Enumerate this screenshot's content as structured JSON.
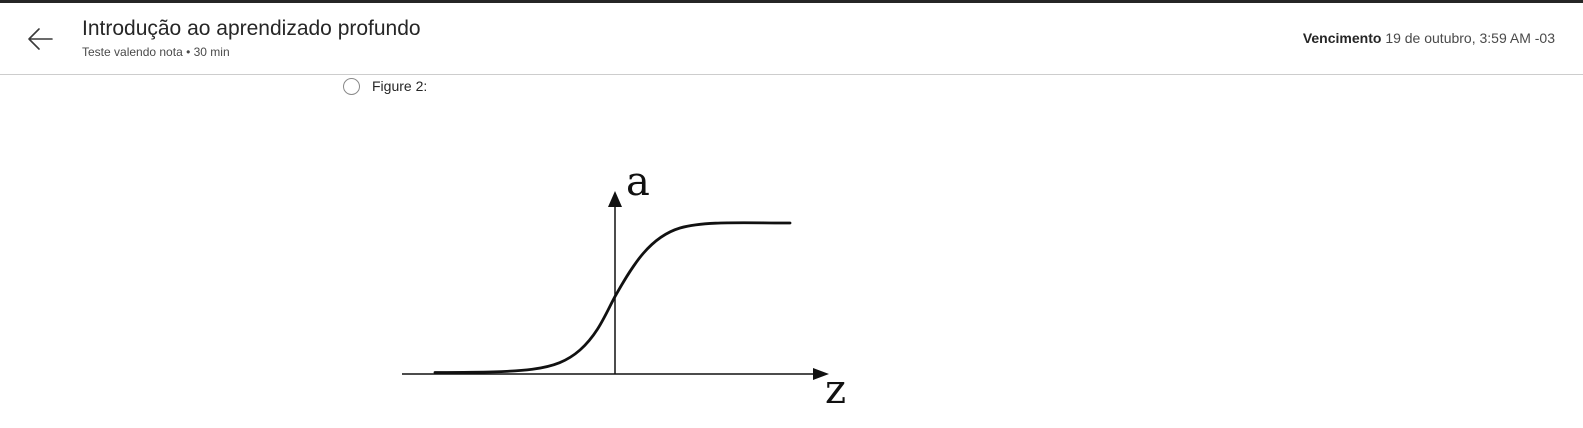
{
  "header": {
    "back_icon": "arrow-left-icon",
    "title": "Introdução ao aprendizado profundo",
    "subtitle": "Teste valendo nota • 30 min",
    "due_label": "Vencimento",
    "due_value": "19 de outubro, 3:59 AM -03"
  },
  "question": {
    "option_label": "Figure 2:",
    "option_selected": false
  },
  "figure": {
    "y_axis_label": "a",
    "x_axis_label": "z",
    "curve": "sigmoid"
  },
  "colors": {
    "text": "#262626",
    "top_strip": "#262626",
    "divider": "#cdcdcd"
  }
}
